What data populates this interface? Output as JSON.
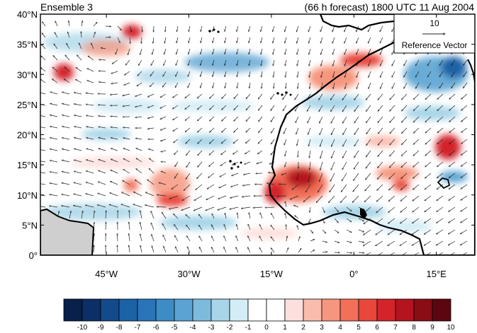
{
  "title_left": "Ensemble 3",
  "title_right": "(66 h forecast) 1800 UTC 11 Aug 2004",
  "map": {
    "lon_range": [
      -57,
      22
    ],
    "lat_range": [
      0,
      40
    ],
    "lat_ticks": [
      {
        "value": 40,
        "label": "40°N"
      },
      {
        "value": 35,
        "label": "35°N"
      },
      {
        "value": 30,
        "label": "30°N"
      },
      {
        "value": 25,
        "label": "25°N"
      },
      {
        "value": 20,
        "label": "20°N"
      },
      {
        "value": 15,
        "label": "15°N"
      },
      {
        "value": 10,
        "label": "10°N"
      },
      {
        "value": 5,
        "label": "5°N"
      },
      {
        "value": 0,
        "label": "0°"
      }
    ],
    "lon_ticks": [
      {
        "value": -45,
        "label": "45°W"
      },
      {
        "value": -30,
        "label": "30°W"
      },
      {
        "value": -15,
        "label": "15°W"
      },
      {
        "value": 0,
        "label": "0°"
      },
      {
        "value": 15,
        "label": "15°E"
      }
    ],
    "land_color": "#cfcfcf",
    "coast_color": "#000000"
  },
  "reference_vector": {
    "value": "10",
    "label": "Reference Vector"
  },
  "colorbar": {
    "labels": [
      "-10",
      "-9",
      "-8",
      "-7",
      "-6",
      "-5",
      "-4",
      "-3",
      "-2",
      "-1",
      "0",
      "1",
      "2",
      "3",
      "4",
      "5",
      "6",
      "7",
      "8",
      "9",
      "10"
    ],
    "colors": [
      "#08204a",
      "#0b2f66",
      "#134a8c",
      "#1c62a6",
      "#2a74b8",
      "#3c8cc6",
      "#5aa3d2",
      "#7dbbdd",
      "#a8d5e8",
      "#d4ecf6",
      "#ffffff",
      "#ffffff",
      "#fde0dd",
      "#f9bcad",
      "#f6967e",
      "#f27058",
      "#e8473a",
      "#d3242b",
      "#b3141f",
      "#8a0d16",
      "#5c0610"
    ]
  }
}
